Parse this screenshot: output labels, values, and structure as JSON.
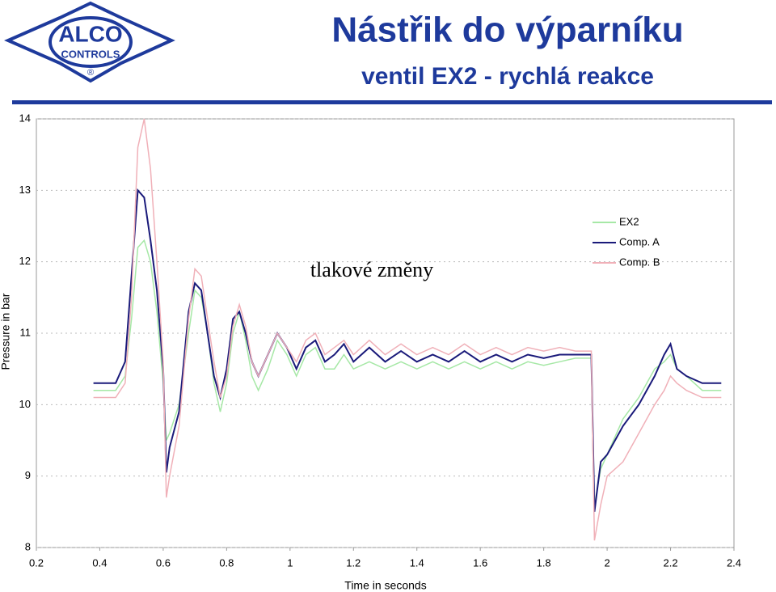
{
  "header": {
    "logo_text": "ALCO",
    "logo_subtext": "CONTROLS",
    "logo_mark": "®",
    "title": "Nástřik do výparníku",
    "subtitle": "ventil EX2 - rychlá reakce"
  },
  "chart_data": {
    "type": "line",
    "annotation": "tlakové změny",
    "xlabel": "Time in seconds",
    "ylabel": "Pressure in bar",
    "xlim": [
      0.2,
      2.4
    ],
    "ylim": [
      8,
      14
    ],
    "xticks": [
      0.2,
      0.4,
      0.6,
      0.8,
      1,
      1.2,
      1.4,
      1.6,
      1.8,
      2,
      2.2,
      2.4
    ],
    "yticks": [
      8,
      9,
      10,
      11,
      12,
      13,
      14
    ],
    "grid": true,
    "legend": "upper right",
    "x": [
      0.38,
      0.45,
      0.48,
      0.5,
      0.52,
      0.54,
      0.56,
      0.58,
      0.6,
      0.61,
      0.62,
      0.65,
      0.68,
      0.7,
      0.72,
      0.74,
      0.76,
      0.78,
      0.8,
      0.82,
      0.84,
      0.86,
      0.88,
      0.9,
      0.93,
      0.96,
      0.99,
      1.02,
      1.05,
      1.08,
      1.11,
      1.14,
      1.17,
      1.2,
      1.25,
      1.3,
      1.35,
      1.4,
      1.45,
      1.5,
      1.55,
      1.6,
      1.65,
      1.7,
      1.75,
      1.8,
      1.85,
      1.9,
      1.95,
      1.96,
      1.98,
      2.0,
      2.05,
      2.1,
      2.15,
      2.18,
      2.2,
      2.22,
      2.25,
      2.3,
      2.36
    ],
    "series": [
      {
        "name": "EX2",
        "color": "#a6e8a6",
        "values": [
          10.2,
          10.2,
          10.4,
          11.2,
          12.2,
          12.3,
          12.0,
          11.3,
          10.3,
          9.5,
          9.6,
          10.0,
          11.0,
          11.6,
          11.5,
          11.0,
          10.3,
          9.9,
          10.3,
          11.0,
          11.3,
          10.9,
          10.4,
          10.2,
          10.5,
          10.9,
          10.7,
          10.4,
          10.7,
          10.8,
          10.5,
          10.5,
          10.7,
          10.5,
          10.6,
          10.5,
          10.6,
          10.5,
          10.6,
          10.5,
          10.6,
          10.5,
          10.6,
          10.5,
          10.6,
          10.55,
          10.6,
          10.65,
          10.65,
          8.6,
          9.1,
          9.3,
          9.8,
          10.1,
          10.5,
          10.6,
          10.7,
          10.5,
          10.4,
          10.2,
          10.2
        ]
      },
      {
        "name": "Comp. A",
        "color": "#1a1a7a",
        "values": [
          10.3,
          10.3,
          10.6,
          11.8,
          13.0,
          12.9,
          12.3,
          11.6,
          10.5,
          9.05,
          9.4,
          9.9,
          11.3,
          11.7,
          11.6,
          11.0,
          10.4,
          10.1,
          10.5,
          11.2,
          11.3,
          11.0,
          10.6,
          10.4,
          10.7,
          11.0,
          10.8,
          10.5,
          10.8,
          10.9,
          10.6,
          10.7,
          10.85,
          10.6,
          10.8,
          10.6,
          10.75,
          10.6,
          10.7,
          10.6,
          10.75,
          10.6,
          10.7,
          10.6,
          10.7,
          10.65,
          10.7,
          10.7,
          10.7,
          8.5,
          9.2,
          9.3,
          9.7,
          10.0,
          10.4,
          10.7,
          10.85,
          10.5,
          10.4,
          10.3,
          10.3
        ]
      },
      {
        "name": "Comp. B",
        "color": "#f0b0b8",
        "values": [
          10.1,
          10.1,
          10.3,
          11.5,
          13.6,
          14.0,
          13.3,
          12.0,
          10.6,
          8.7,
          9.0,
          9.7,
          11.2,
          11.9,
          11.8,
          11.2,
          10.6,
          10.1,
          10.4,
          11.1,
          11.4,
          11.1,
          10.6,
          10.4,
          10.7,
          11.0,
          10.8,
          10.6,
          10.9,
          11.0,
          10.7,
          10.8,
          10.9,
          10.7,
          10.9,
          10.7,
          10.85,
          10.7,
          10.8,
          10.7,
          10.85,
          10.7,
          10.8,
          10.7,
          10.8,
          10.75,
          10.8,
          10.75,
          10.75,
          8.1,
          8.6,
          9.0,
          9.2,
          9.6,
          10.0,
          10.2,
          10.4,
          10.3,
          10.2,
          10.1,
          10.1
        ]
      }
    ]
  }
}
